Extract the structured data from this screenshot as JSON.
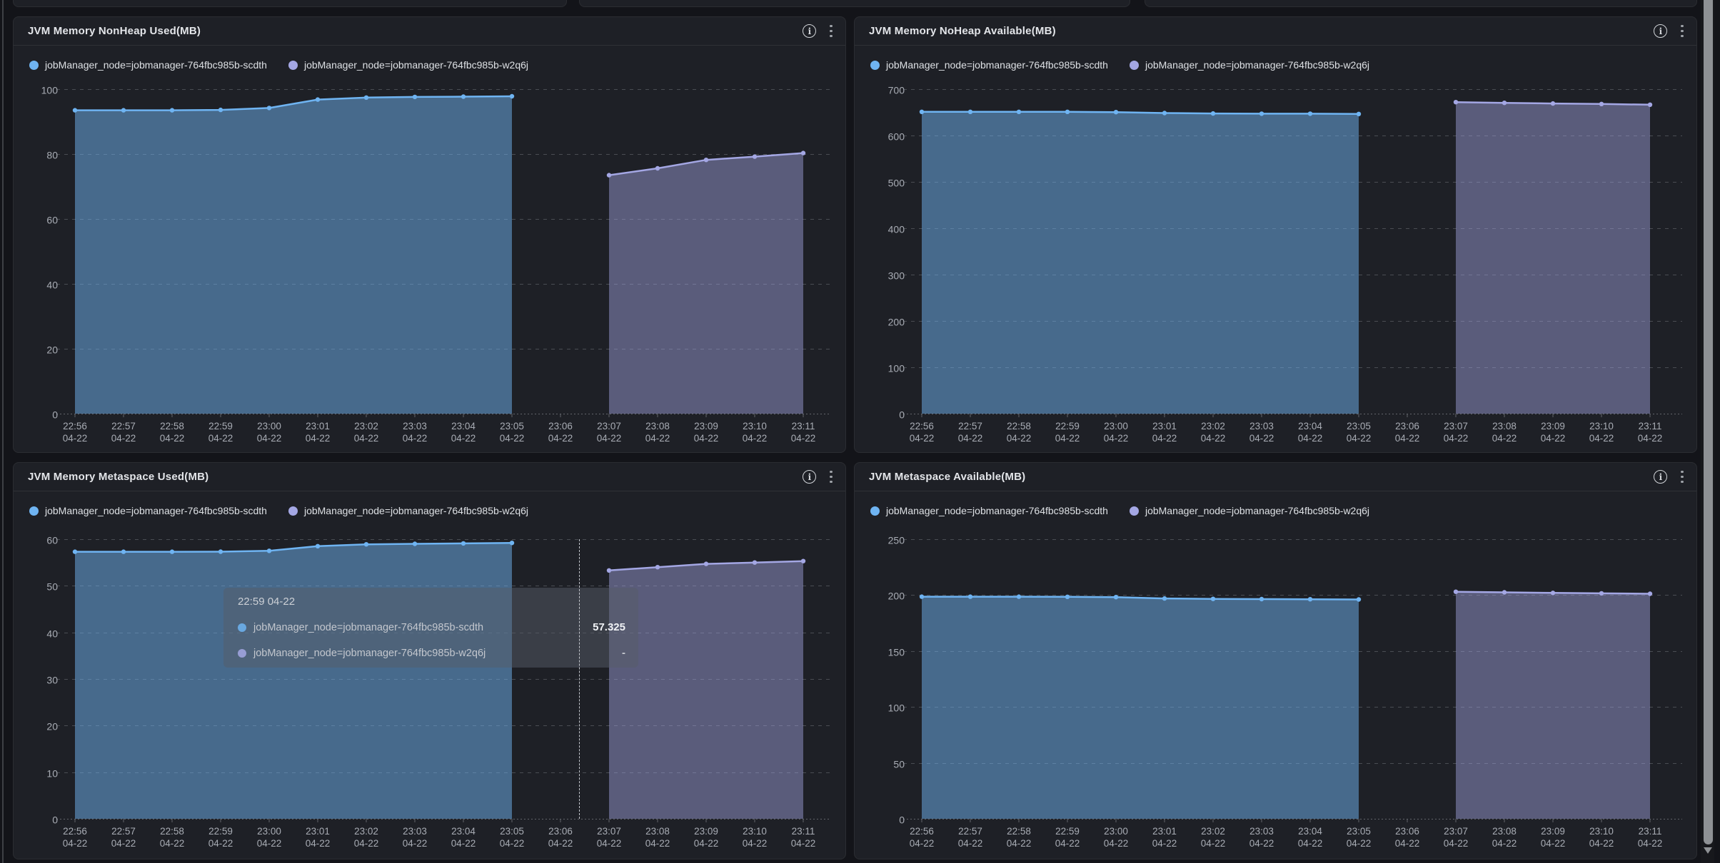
{
  "page": {
    "background": "#131419"
  },
  "colors": {
    "series1": "#6fb4f2",
    "series2": "#a4a7e4",
    "series1_fill": "rgba(111,180,242,0.5)",
    "series2_fill": "rgba(164,167,228,0.45)"
  },
  "icons": {
    "info": "i"
  },
  "tooltip": {
    "header": "22:59 04-22",
    "rows": [
      {
        "label": "jobManager_node=jobmanager-764fbc985b-scdth",
        "value": "57.325"
      },
      {
        "label": "jobManager_node=jobmanager-764fbc985b-w2q6j",
        "value": "-"
      }
    ]
  },
  "chart_data": [
    {
      "type": "area",
      "title": "JVM Memory NonHeap Used(MB)",
      "x": [
        "22:56",
        "22:57",
        "22:58",
        "22:59",
        "23:00",
        "23:01",
        "23:02",
        "23:03",
        "23:04",
        "23:05",
        "23:06",
        "23:07",
        "23:08",
        "23:09",
        "23:10",
        "23:11"
      ],
      "x_date": "04-22",
      "ylim": [
        0,
        100
      ],
      "ytick_step": 20,
      "grid": true,
      "legend_position": "top-left",
      "series": [
        {
          "name": "jobManager_node=jobmanager-764fbc985b-scdth",
          "color_key": "series1",
          "start_index": 0,
          "values": [
            93.5,
            93.5,
            93.5,
            93.6,
            94.2,
            96.8,
            97.4,
            97.6,
            97.7,
            97.8
          ]
        },
        {
          "name": "jobManager_node=jobmanager-764fbc985b-w2q6j",
          "color_key": "series2",
          "start_index": 11,
          "values": [
            73.5,
            75.6,
            78.2,
            79.2,
            80.3
          ]
        }
      ]
    },
    {
      "type": "area",
      "title": "JVM Memory NoHeap Available(MB)",
      "x": [
        "22:56",
        "22:57",
        "22:58",
        "22:59",
        "23:00",
        "23:01",
        "23:02",
        "23:03",
        "23:04",
        "23:05",
        "23:06",
        "23:07",
        "23:08",
        "23:09",
        "23:10",
        "23:11"
      ],
      "x_date": "04-22",
      "ylim": [
        0,
        700
      ],
      "ytick_step": 100,
      "grid": true,
      "legend_position": "top-left",
      "series": [
        {
          "name": "jobManager_node=jobmanager-764fbc985b-scdth",
          "color_key": "series1",
          "start_index": 0,
          "values": [
            651,
            651,
            651,
            651,
            650.5,
            648.5,
            647.5,
            647,
            647,
            646.5
          ]
        },
        {
          "name": "jobManager_node=jobmanager-764fbc985b-w2q6j",
          "color_key": "series2",
          "start_index": 11,
          "values": [
            672,
            670.5,
            669,
            668,
            666.5
          ]
        }
      ]
    },
    {
      "type": "area",
      "title": "JVM Memory Metaspace Used(MB)",
      "x": [
        "22:56",
        "22:57",
        "22:58",
        "22:59",
        "23:00",
        "23:01",
        "23:02",
        "23:03",
        "23:04",
        "23:05",
        "23:06",
        "23:07",
        "23:08",
        "23:09",
        "23:10",
        "23:11"
      ],
      "x_date": "04-22",
      "ylim": [
        0,
        60
      ],
      "ytick_step": 10,
      "grid": true,
      "legend_position": "top-left",
      "series": [
        {
          "name": "jobManager_node=jobmanager-764fbc985b-scdth",
          "color_key": "series1",
          "start_index": 0,
          "values": [
            57.3,
            57.3,
            57.3,
            57.325,
            57.5,
            58.5,
            58.9,
            59.0,
            59.1,
            59.2
          ]
        },
        {
          "name": "jobManager_node=jobmanager-764fbc985b-w2q6j",
          "color_key": "series2",
          "start_index": 11,
          "values": [
            53.3,
            54.0,
            54.7,
            55.0,
            55.3
          ]
        }
      ]
    },
    {
      "type": "area",
      "title": "JVM Metaspace Available(MB)",
      "x": [
        "22:56",
        "22:57",
        "22:58",
        "22:59",
        "23:00",
        "23:01",
        "23:02",
        "23:03",
        "23:04",
        "23:05",
        "23:06",
        "23:07",
        "23:08",
        "23:09",
        "23:10",
        "23:11"
      ],
      "x_date": "04-22",
      "ylim": [
        0,
        250
      ],
      "ytick_step": 50,
      "grid": true,
      "legend_position": "top-left",
      "series": [
        {
          "name": "jobManager_node=jobmanager-764fbc985b-scdth",
          "color_key": "series1",
          "start_index": 0,
          "values": [
            198.6,
            198.6,
            198.6,
            198.5,
            198.2,
            197.0,
            196.6,
            196.4,
            196.3,
            196.1
          ]
        },
        {
          "name": "jobManager_node=jobmanager-764fbc985b-w2q6j",
          "color_key": "series2",
          "start_index": 11,
          "values": [
            203,
            202.5,
            202,
            201.6,
            201.2
          ]
        }
      ]
    }
  ]
}
